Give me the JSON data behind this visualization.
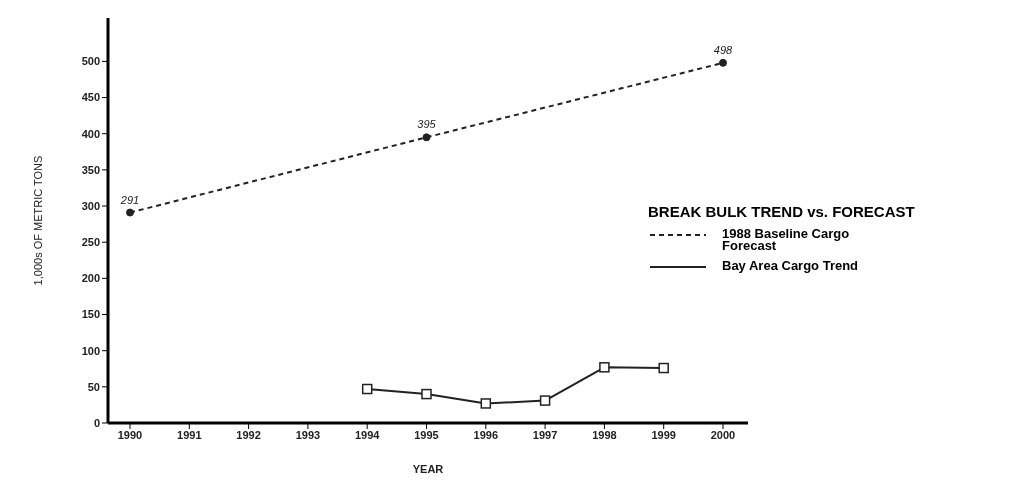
{
  "chart_data": {
    "type": "line",
    "xlabel": "YEAR",
    "ylabel": "1,000s OF METRIC TONS",
    "legend_title": "BREAK BULK TREND vs. FORECAST",
    "legend": "right",
    "grid": false,
    "categories": [
      "1990",
      "1991",
      "1992",
      "1993",
      "1994",
      "1995",
      "1996",
      "1997",
      "1998",
      "1999",
      "2000"
    ],
    "ylim": [
      0,
      560
    ],
    "yticks": [
      0,
      50,
      100,
      150,
      200,
      250,
      300,
      350,
      400,
      450,
      500
    ],
    "series": [
      {
        "name": "1988 Baseline Cargo Forecast",
        "color": "#222222",
        "line_style": "dashed",
        "marker": "circle",
        "values": [
          291,
          null,
          null,
          null,
          null,
          395,
          null,
          null,
          null,
          null,
          498
        ],
        "value_labels": [
          "291",
          null,
          null,
          null,
          null,
          "395",
          null,
          null,
          null,
          null,
          "498"
        ]
      },
      {
        "name": "Bay Area Cargo Trend",
        "color": "#222222",
        "line_style": "solid",
        "marker": "square",
        "values": [
          null,
          null,
          null,
          null,
          47,
          40,
          27,
          31,
          77,
          76,
          null
        ]
      }
    ]
  }
}
